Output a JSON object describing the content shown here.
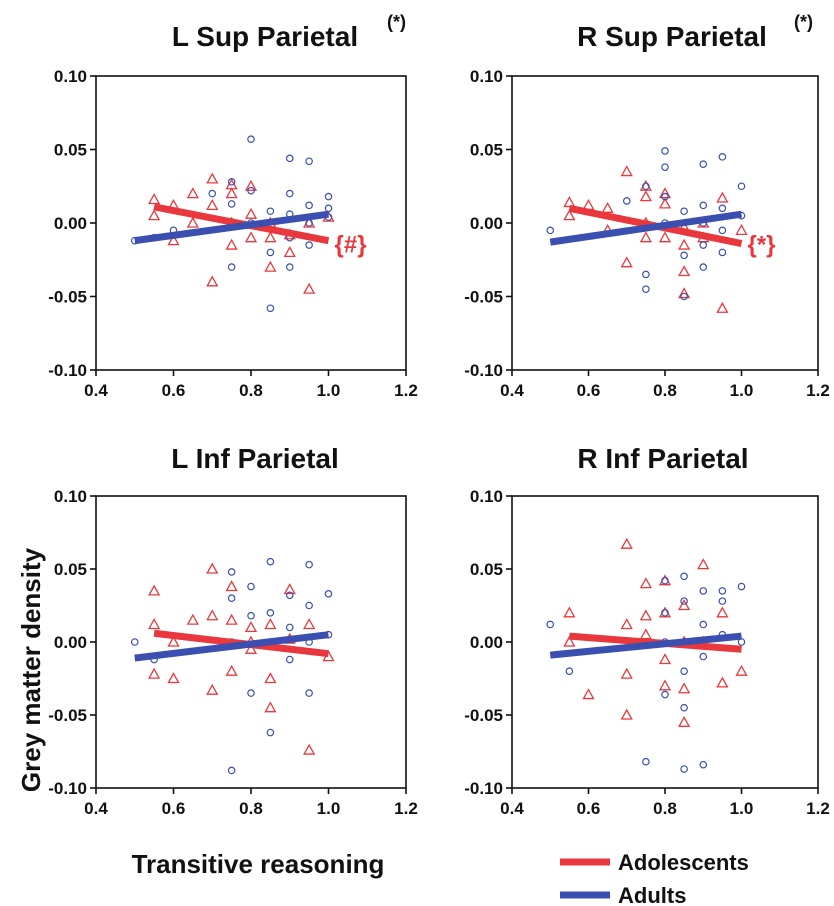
{
  "figure": {
    "ylabel": "Grey matter density",
    "xlabel": "Transitive reasoning",
    "legend": {
      "placement": "bottom-right",
      "items": [
        {
          "label": "Adolescents",
          "color": "#e8383d"
        },
        {
          "label": "Adults",
          "color": "#3a4fb0"
        }
      ]
    }
  },
  "chart_data": [
    {
      "type": "scatter",
      "title": "L Sup Parietal",
      "title_sup": "(*)",
      "annotation": "{#}",
      "xlim": [
        0.4,
        1.2
      ],
      "ylim": [
        -0.1,
        0.1
      ],
      "xticks": [
        "0.4",
        "0.6",
        "0.8",
        "1.0",
        "1.2"
      ],
      "yticks": [
        "0.10",
        "0.05",
        "0.00",
        "-0.05",
        "-0.10"
      ],
      "series": [
        {
          "name": "Adolescents",
          "marker": "triangle",
          "color": "#e8383d",
          "fit": [
            [
              0.55,
              0.011
            ],
            [
              1.0,
              -0.012
            ]
          ],
          "points": [
            [
              0.55,
              0.016
            ],
            [
              0.55,
              0.005
            ],
            [
              0.6,
              0.012
            ],
            [
              0.6,
              -0.012
            ],
            [
              0.65,
              0.02
            ],
            [
              0.65,
              0.0
            ],
            [
              0.7,
              0.03
            ],
            [
              0.7,
              0.012
            ],
            [
              0.7,
              -0.04
            ],
            [
              0.75,
              0.026
            ],
            [
              0.75,
              0.02
            ],
            [
              0.75,
              0.0
            ],
            [
              0.75,
              -0.015
            ],
            [
              0.8,
              0.025
            ],
            [
              0.8,
              0.006
            ],
            [
              0.8,
              -0.01
            ],
            [
              0.85,
              0.0
            ],
            [
              0.85,
              -0.01
            ],
            [
              0.85,
              -0.03
            ],
            [
              0.9,
              -0.008
            ],
            [
              0.9,
              -0.02
            ],
            [
              0.95,
              0.0
            ],
            [
              0.95,
              -0.045
            ],
            [
              1.0,
              0.004
            ]
          ]
        },
        {
          "name": "Adults",
          "marker": "circle",
          "color": "#3a4fb0",
          "fit": [
            [
              0.5,
              -0.012
            ],
            [
              1.0,
              0.006
            ]
          ],
          "points": [
            [
              0.5,
              -0.012
            ],
            [
              0.55,
              -0.01
            ],
            [
              0.6,
              -0.005
            ],
            [
              0.7,
              0.02
            ],
            [
              0.75,
              0.028
            ],
            [
              0.75,
              0.013
            ],
            [
              0.75,
              -0.03
            ],
            [
              0.8,
              0.057
            ],
            [
              0.8,
              0.022
            ],
            [
              0.8,
              0.0
            ],
            [
              0.85,
              0.008
            ],
            [
              0.85,
              -0.02
            ],
            [
              0.85,
              -0.058
            ],
            [
              0.9,
              0.044
            ],
            [
              0.9,
              0.02
            ],
            [
              0.9,
              0.006
            ],
            [
              0.9,
              -0.01
            ],
            [
              0.9,
              -0.03
            ],
            [
              0.95,
              0.042
            ],
            [
              0.95,
              0.012
            ],
            [
              0.95,
              0.0
            ],
            [
              0.95,
              -0.015
            ],
            [
              1.0,
              0.018
            ],
            [
              1.0,
              0.01
            ],
            [
              1.0,
              0.004
            ]
          ]
        }
      ]
    },
    {
      "type": "scatter",
      "title": "R Sup Parietal",
      "title_sup": "(*)",
      "annotation": "{*}",
      "xlim": [
        0.4,
        1.2
      ],
      "ylim": [
        -0.1,
        0.1
      ],
      "xticks": [
        "0.4",
        "0.6",
        "0.8",
        "1.0",
        "1.2"
      ],
      "yticks": [
        "0.10",
        "0.05",
        "0.00",
        "-0.05",
        "-0.10"
      ],
      "series": [
        {
          "name": "Adolescents",
          "marker": "triangle",
          "color": "#e8383d",
          "fit": [
            [
              0.55,
              0.01
            ],
            [
              1.0,
              -0.014
            ]
          ],
          "points": [
            [
              0.55,
              0.014
            ],
            [
              0.55,
              0.005
            ],
            [
              0.6,
              0.012
            ],
            [
              0.65,
              0.01
            ],
            [
              0.65,
              -0.005
            ],
            [
              0.7,
              0.035
            ],
            [
              0.7,
              -0.027
            ],
            [
              0.75,
              0.025
            ],
            [
              0.75,
              0.018
            ],
            [
              0.75,
              0.0
            ],
            [
              0.75,
              -0.01
            ],
            [
              0.8,
              0.02
            ],
            [
              0.8,
              0.013
            ],
            [
              0.8,
              -0.01
            ],
            [
              0.85,
              -0.003
            ],
            [
              0.85,
              -0.015
            ],
            [
              0.85,
              -0.033
            ],
            [
              0.85,
              -0.048
            ],
            [
              0.9,
              0.0
            ],
            [
              0.9,
              -0.01
            ],
            [
              0.95,
              0.017
            ],
            [
              0.95,
              -0.058
            ],
            [
              1.0,
              -0.005
            ]
          ]
        },
        {
          "name": "Adults",
          "marker": "circle",
          "color": "#3a4fb0",
          "fit": [
            [
              0.5,
              -0.013
            ],
            [
              1.0,
              0.006
            ]
          ],
          "points": [
            [
              0.5,
              -0.005
            ],
            [
              0.7,
              0.015
            ],
            [
              0.75,
              0.025
            ],
            [
              0.75,
              -0.035
            ],
            [
              0.75,
              -0.045
            ],
            [
              0.8,
              0.049
            ],
            [
              0.8,
              0.038
            ],
            [
              0.8,
              0.018
            ],
            [
              0.8,
              0.0
            ],
            [
              0.85,
              0.008
            ],
            [
              0.85,
              -0.022
            ],
            [
              0.85,
              -0.05
            ],
            [
              0.9,
              0.04
            ],
            [
              0.9,
              0.012
            ],
            [
              0.9,
              0.0
            ],
            [
              0.9,
              -0.015
            ],
            [
              0.9,
              -0.03
            ],
            [
              0.95,
              0.045
            ],
            [
              0.95,
              0.01
            ],
            [
              0.95,
              -0.005
            ],
            [
              0.95,
              -0.02
            ],
            [
              1.0,
              0.025
            ],
            [
              1.0,
              0.005
            ]
          ]
        }
      ]
    },
    {
      "type": "scatter",
      "title": "L Inf Parietal",
      "xlim": [
        0.4,
        1.2
      ],
      "ylim": [
        -0.1,
        0.1
      ],
      "xticks": [
        "0.4",
        "0.6",
        "0.8",
        "1.0",
        "1.2"
      ],
      "yticks": [
        "0.10",
        "0.05",
        "0.00",
        "-0.05",
        "-0.10"
      ],
      "series": [
        {
          "name": "Adolescents",
          "marker": "triangle",
          "color": "#e8383d",
          "fit": [
            [
              0.55,
              0.006
            ],
            [
              1.0,
              -0.008
            ]
          ],
          "points": [
            [
              0.55,
              0.035
            ],
            [
              0.55,
              0.012
            ],
            [
              0.55,
              -0.022
            ],
            [
              0.6,
              0.0
            ],
            [
              0.6,
              -0.025
            ],
            [
              0.65,
              0.015
            ],
            [
              0.7,
              0.05
            ],
            [
              0.7,
              0.018
            ],
            [
              0.7,
              -0.033
            ],
            [
              0.75,
              0.038
            ],
            [
              0.75,
              0.015
            ],
            [
              0.75,
              -0.02
            ],
            [
              0.8,
              0.01
            ],
            [
              0.8,
              0.0
            ],
            [
              0.8,
              -0.005
            ],
            [
              0.85,
              0.012
            ],
            [
              0.85,
              -0.025
            ],
            [
              0.85,
              -0.045
            ],
            [
              0.9,
              0.036
            ],
            [
              0.9,
              0.002
            ],
            [
              0.95,
              0.012
            ],
            [
              0.95,
              -0.074
            ],
            [
              1.0,
              -0.01
            ]
          ]
        },
        {
          "name": "Adults",
          "marker": "circle",
          "color": "#3a4fb0",
          "fit": [
            [
              0.5,
              -0.011
            ],
            [
              1.0,
              0.005
            ]
          ],
          "points": [
            [
              0.5,
              0.0
            ],
            [
              0.55,
              -0.012
            ],
            [
              0.75,
              0.048
            ],
            [
              0.75,
              0.03
            ],
            [
              0.75,
              0.0
            ],
            [
              0.75,
              -0.088
            ],
            [
              0.8,
              0.038
            ],
            [
              0.8,
              0.018
            ],
            [
              0.8,
              -0.035
            ],
            [
              0.85,
              0.055
            ],
            [
              0.85,
              0.02
            ],
            [
              0.85,
              0.0
            ],
            [
              0.85,
              -0.062
            ],
            [
              0.9,
              0.032
            ],
            [
              0.9,
              0.01
            ],
            [
              0.9,
              -0.012
            ],
            [
              0.95,
              0.053
            ],
            [
              0.95,
              0.025
            ],
            [
              0.95,
              0.0
            ],
            [
              0.95,
              -0.035
            ],
            [
              1.0,
              0.033
            ],
            [
              1.0,
              0.005
            ]
          ]
        }
      ]
    },
    {
      "type": "scatter",
      "title": "R Inf Parietal",
      "xlim": [
        0.4,
        1.2
      ],
      "ylim": [
        -0.1,
        0.1
      ],
      "xticks": [
        "0.4",
        "0.6",
        "0.8",
        "1.0",
        "1.2"
      ],
      "yticks": [
        "0.10",
        "0.05",
        "0.00",
        "-0.05",
        "-0.10"
      ],
      "series": [
        {
          "name": "Adolescents",
          "marker": "triangle",
          "color": "#e8383d",
          "fit": [
            [
              0.55,
              0.004
            ],
            [
              1.0,
              -0.005
            ]
          ],
          "points": [
            [
              0.55,
              0.02
            ],
            [
              0.55,
              0.0
            ],
            [
              0.6,
              -0.036
            ],
            [
              0.7,
              0.067
            ],
            [
              0.7,
              0.012
            ],
            [
              0.7,
              -0.022
            ],
            [
              0.7,
              -0.05
            ],
            [
              0.75,
              0.04
            ],
            [
              0.75,
              0.018
            ],
            [
              0.75,
              0.005
            ],
            [
              0.8,
              0.042
            ],
            [
              0.8,
              0.02
            ],
            [
              0.8,
              -0.012
            ],
            [
              0.8,
              -0.03
            ],
            [
              0.85,
              0.025
            ],
            [
              0.85,
              0.0
            ],
            [
              0.85,
              -0.032
            ],
            [
              0.85,
              -0.055
            ],
            [
              0.9,
              0.053
            ],
            [
              0.9,
              0.0
            ],
            [
              0.95,
              0.02
            ],
            [
              0.95,
              -0.028
            ],
            [
              1.0,
              -0.02
            ]
          ]
        },
        {
          "name": "Adults",
          "marker": "circle",
          "color": "#3a4fb0",
          "fit": [
            [
              0.5,
              -0.009
            ],
            [
              1.0,
              0.004
            ]
          ],
          "points": [
            [
              0.5,
              0.012
            ],
            [
              0.55,
              -0.02
            ],
            [
              0.75,
              -0.082
            ],
            [
              0.8,
              0.042
            ],
            [
              0.8,
              0.02
            ],
            [
              0.8,
              0.0
            ],
            [
              0.8,
              -0.036
            ],
            [
              0.85,
              0.045
            ],
            [
              0.85,
              0.028
            ],
            [
              0.85,
              0.0
            ],
            [
              0.85,
              -0.02
            ],
            [
              0.85,
              -0.045
            ],
            [
              0.85,
              -0.087
            ],
            [
              0.9,
              0.035
            ],
            [
              0.9,
              0.012
            ],
            [
              0.9,
              -0.01
            ],
            [
              0.9,
              -0.084
            ],
            [
              0.95,
              0.035
            ],
            [
              0.95,
              0.028
            ],
            [
              0.95,
              0.005
            ],
            [
              1.0,
              0.038
            ],
            [
              1.0,
              0.0
            ]
          ]
        }
      ]
    }
  ]
}
